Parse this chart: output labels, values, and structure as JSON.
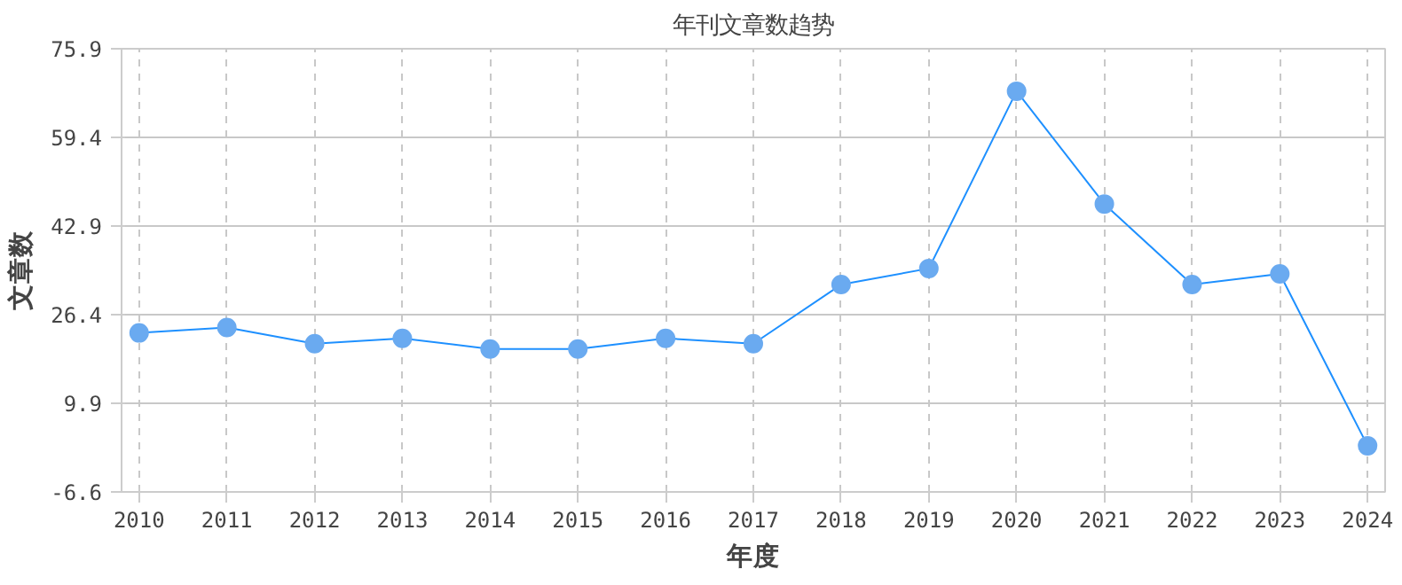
{
  "chart_data": {
    "type": "line",
    "title": "年刊文章数趋势",
    "xlabel": "年度",
    "ylabel": "文章数",
    "categories": [
      "2010",
      "2011",
      "2012",
      "2013",
      "2014",
      "2015",
      "2016",
      "2017",
      "2018",
      "2019",
      "2020",
      "2021",
      "2022",
      "2023",
      "2024"
    ],
    "series": [
      {
        "color": "#1e90ff",
        "values": [
          23,
          24,
          21,
          22,
          20,
          20,
          22,
          21,
          32,
          35,
          68,
          47,
          32,
          34,
          2
        ]
      }
    ],
    "ylim": [
      -6.6,
      75.9
    ],
    "yticks": [
      -6.6,
      9.9,
      26.4,
      42.9,
      59.4,
      75.9
    ],
    "grid": true,
    "marker": "circle",
    "line_style": "solid"
  }
}
